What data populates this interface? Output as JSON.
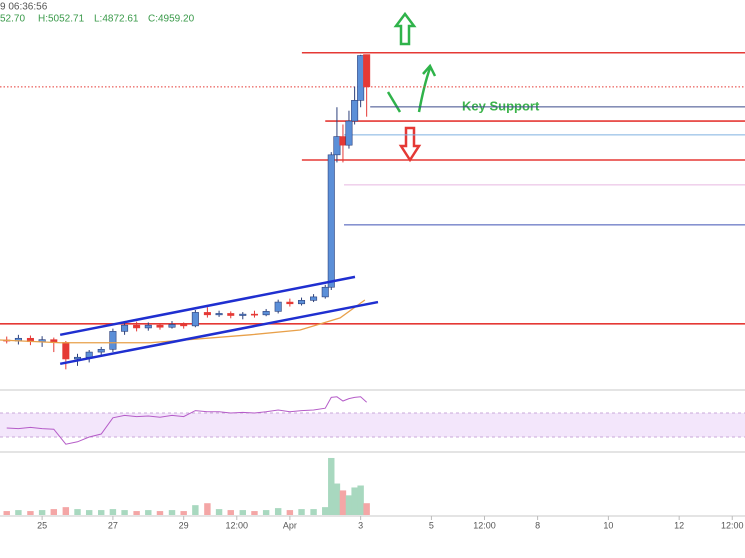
{
  "chart_data": {
    "type": "candlestick",
    "header": {
      "time": "9 06:36:56",
      "ohlc": [
        "52.70",
        "H:5052.71",
        "L:4872.61",
        "C:4959.20"
      ]
    },
    "annotation": "Key Support",
    "xlim": [
      -1.19,
      19.86
    ],
    "ylim": [
      4080,
      5211
    ],
    "xticks": [
      {
        "value": 0,
        "label": "25"
      },
      {
        "value": 2,
        "label": "27"
      },
      {
        "value": 4,
        "label": "29"
      },
      {
        "value": 5.5,
        "label": "12:00"
      },
      {
        "value": 7,
        "label": "Apr"
      },
      {
        "value": 9,
        "label": "3"
      },
      {
        "value": 11,
        "label": "5"
      },
      {
        "value": 12.5,
        "label": "12:00"
      },
      {
        "value": 14,
        "label": "8"
      },
      {
        "value": 16,
        "label": "10"
      },
      {
        "value": 18,
        "label": "12"
      },
      {
        "value": 19.5,
        "label": "12:00"
      }
    ],
    "up_color": "#5b8fd8",
    "down_color": "#e53935",
    "x": [
      -1.0,
      -0.67,
      -0.33,
      0,
      0.33,
      0.67,
      1.0,
      1.33,
      1.67,
      2.0,
      2.33,
      2.67,
      3.0,
      3.33,
      3.67,
      4.0,
      4.33,
      4.67,
      5.0,
      5.33,
      5.67,
      6.0,
      6.33,
      6.67,
      7.0,
      7.33,
      7.67,
      8.0,
      8.17,
      8.33,
      8.5,
      8.67,
      8.83,
      9.0,
      9.17
    ],
    "open": [
      4225,
      4222,
      4230,
      4220,
      4226,
      4218,
      4170,
      4175,
      4190,
      4198,
      4250,
      4268,
      4260,
      4268,
      4262,
      4270,
      4266,
      4305,
      4298,
      4302,
      4296,
      4300,
      4298,
      4308,
      4335,
      4330,
      4340,
      4350,
      4378,
      4762,
      4815,
      4790,
      4860,
      4920,
      5052.7
    ],
    "high": [
      4235,
      4240,
      4238,
      4236,
      4232,
      4222,
      4185,
      4196,
      4205,
      4258,
      4275,
      4278,
      4276,
      4274,
      4280,
      4276,
      4312,
      4320,
      4310,
      4308,
      4306,
      4310,
      4315,
      4342,
      4345,
      4348,
      4358,
      4385,
      4770,
      4900,
      4850,
      4890,
      4960,
      5052,
      5052.71
    ],
    "low": [
      4215,
      4212,
      4210,
      4205,
      4190,
      4140,
      4150,
      4160,
      4180,
      4190,
      4240,
      4250,
      4252,
      4255,
      4258,
      4258,
      4262,
      4290,
      4292,
      4288,
      4285,
      4290,
      4294,
      4302,
      4322,
      4325,
      4335,
      4345,
      4370,
      4740,
      4740,
      4780,
      4850,
      4900,
      4872.61
    ],
    "close": [
      4222,
      4230,
      4220,
      4226,
      4218,
      4170,
      4175,
      4190,
      4198,
      4250,
      4268,
      4260,
      4268,
      4262,
      4270,
      4266,
      4305,
      4298,
      4302,
      4296,
      4300,
      4298,
      4308,
      4335,
      4330,
      4340,
      4350,
      4378,
      4762,
      4815,
      4790,
      4860,
      4920,
      5050,
      4959.2
    ],
    "levels": [
      {
        "value": 5058,
        "from": 7.34,
        "color": "#e53935",
        "style": "solid"
      },
      {
        "value": 4959.2,
        "from": -1.19,
        "color": "#e53935",
        "style": "dotted"
      },
      {
        "value": 4901,
        "from": 9.27,
        "color": "#3b4a8a",
        "style": "thin"
      },
      {
        "value": 4860,
        "from": 8.0,
        "color": "#e53935",
        "style": "solid"
      },
      {
        "value": 4820,
        "from": 8.53,
        "color": "#7fb0e0",
        "style": "thin"
      },
      {
        "value": 4747,
        "from": 7.34,
        "color": "#e53935",
        "style": "solid"
      },
      {
        "value": 4675,
        "from": 8.53,
        "color": "#e6b8e0",
        "style": "thin"
      },
      {
        "value": 4559,
        "from": 8.53,
        "color": "#3f51b5",
        "style": "thin"
      },
      {
        "value": 4272,
        "from": -1.19,
        "color": "#e53935",
        "style": "solid"
      }
    ],
    "channel": {
      "color": "#1f2fd0",
      "lines": [
        {
          "x": [
            0.51,
            8.84
          ],
          "values": [
            4240,
            4408
          ]
        },
        {
          "x": [
            0.51,
            9.49
          ],
          "values": [
            4156,
            4335
          ]
        }
      ]
    },
    "ma": {
      "color": "#e8a04a",
      "x": [
        -1.19,
        0.51,
        3.05,
        5.88,
        7.29,
        8.42,
        9.12
      ],
      "values": [
        4225,
        4217,
        4217,
        4240,
        4254,
        4289,
        4341
      ]
    },
    "rsi": {
      "color": "#b55cc8",
      "band_color": "#f3e6fb",
      "ylim": [
        0,
        100
      ],
      "band": [
        30,
        70
      ],
      "values": [
        45,
        44,
        46,
        44,
        43,
        18,
        22,
        30,
        35,
        62,
        66,
        64,
        65,
        63,
        66,
        64,
        74,
        72,
        72,
        70,
        71,
        70,
        72,
        75,
        72,
        74,
        75,
        78,
        96,
        97,
        90,
        94,
        96,
        97,
        88
      ]
    },
    "volume": {
      "up_color": "#a8d8bf",
      "down_color": "#f4a6a6",
      "ylim": [
        0,
        60
      ],
      "values": [
        4,
        5,
        4,
        5,
        6,
        8,
        6,
        5,
        5,
        6,
        5,
        4,
        5,
        4,
        5,
        4,
        10,
        12,
        6,
        5,
        5,
        4,
        5,
        7,
        5,
        6,
        6,
        8,
        58,
        32,
        25,
        20,
        28,
        30,
        12
      ]
    }
  }
}
